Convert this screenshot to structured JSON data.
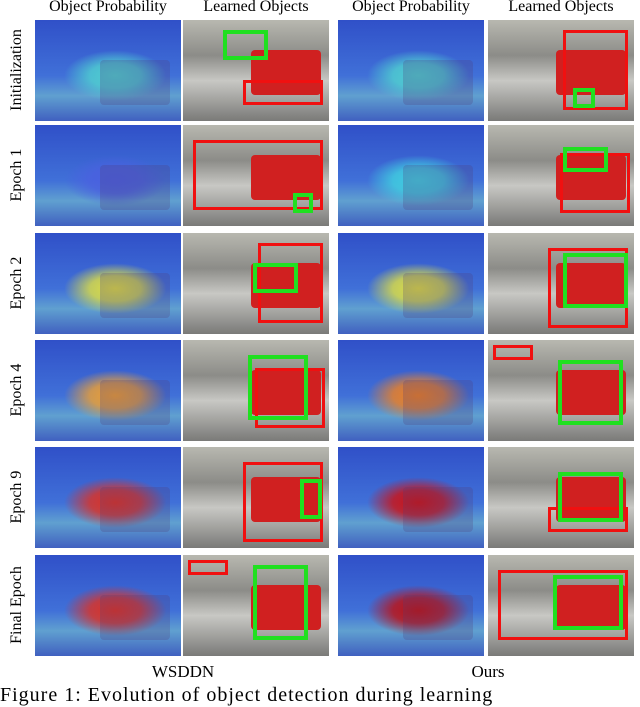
{
  "columns": [
    "Object Probability",
    "Learned Objects",
    "Object Probability",
    "Learned Objects"
  ],
  "rows": [
    "Initialization",
    "Epoch 1",
    "Epoch 2",
    "Epoch 4",
    "Epoch 9",
    "Final Epoch"
  ],
  "groups": [
    "WSDDN",
    "Ours"
  ],
  "caption": "Figure 1: Evolution of object detection during learning"
}
